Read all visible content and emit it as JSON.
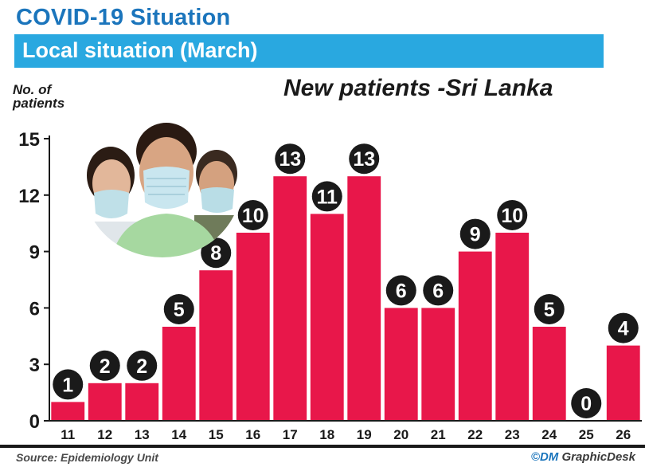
{
  "header": {
    "title": "COVID-19  Situation",
    "subtitle": "Local situation (March)"
  },
  "colors": {
    "title_blue": "#1b75bc",
    "banner_blue": "#29a8e0",
    "bar_red": "#e8174a",
    "badge_black": "#1a1a1a"
  },
  "illustration": "three people wearing surgical face masks (circular photo)",
  "chart_data": {
    "type": "bar",
    "title": "New patients -Sri Lanka",
    "ylabel": "No. of patients",
    "xlabel": "",
    "categories": [
      "11",
      "12",
      "13",
      "14",
      "15",
      "16",
      "17",
      "18",
      "19",
      "20",
      "21",
      "22",
      "23",
      "24",
      "25",
      "26"
    ],
    "values": [
      1,
      2,
      2,
      5,
      8,
      10,
      13,
      11,
      13,
      6,
      6,
      9,
      10,
      5,
      0,
      4
    ],
    "yticks": [
      0,
      3,
      6,
      9,
      12,
      15
    ],
    "ylim": [
      0,
      15
    ],
    "grid": false,
    "data_labels": true
  },
  "footer": {
    "source": "Source: Epidemiology Unit",
    "credit_logo": "©DM",
    "credit_name": " GraphicDesk"
  }
}
